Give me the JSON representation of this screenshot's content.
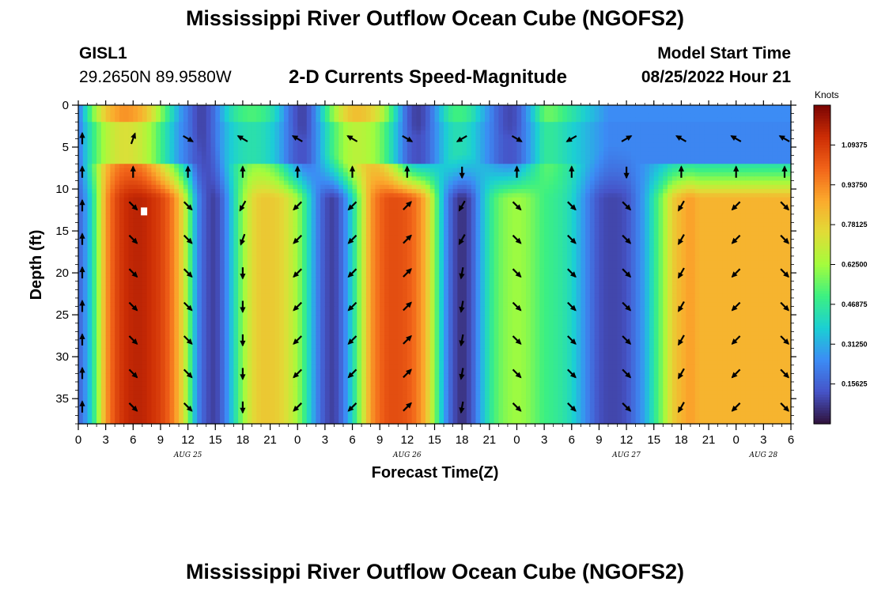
{
  "header": {
    "title": "Mississippi River Outflow Ocean Cube (NGOFS2)",
    "station_id": "GISL1",
    "coordinates": "29.2650N  89.9580W",
    "subtitle": "2-D Currents Speed-Magnitude",
    "model_start_label": "Model Start Time",
    "model_start_value": "08/25/2022 Hour 21"
  },
  "footer": {
    "title": "Mississippi River Outflow Ocean Cube (NGOFS2)"
  },
  "chart_data": {
    "type": "heatmap",
    "xlabel": "Forecast Time(Z)",
    "ylabel": "Depth (ft)",
    "x_unit": "hours since Aug 25 00Z",
    "xlim": [
      0,
      78
    ],
    "ylim": [
      0,
      38
    ],
    "y_inverted": true,
    "x_tick_values": [
      0,
      3,
      6,
      9,
      12,
      15,
      18,
      21,
      24,
      27,
      30,
      33,
      36,
      39,
      42,
      45,
      48,
      51,
      54,
      57,
      60,
      63,
      66,
      69,
      72,
      75,
      78
    ],
    "x_tick_labels": [
      "0",
      "3",
      "6",
      "9",
      "12",
      "15",
      "18",
      "21",
      "0",
      "3",
      "6",
      "9",
      "12",
      "15",
      "18",
      "21",
      "0",
      "3",
      "6",
      "9",
      "12",
      "15",
      "18",
      "21",
      "0",
      "3",
      "6"
    ],
    "y_ticks": [
      0,
      5,
      10,
      15,
      20,
      25,
      30,
      35
    ],
    "day_labels": [
      {
        "text": "AUG 25",
        "hour": 12
      },
      {
        "text": "AUG 26",
        "hour": 36
      },
      {
        "text": "AUG 27",
        "hour": 60
      },
      {
        "text": "AUG 28",
        "hour": 75
      }
    ],
    "colorbar": {
      "units": "Knots",
      "range": [
        0,
        1.25
      ],
      "tick_values": [
        1.09375,
        0.9375,
        0.78125,
        0.625,
        0.46875,
        0.3125,
        0.15625
      ],
      "tick_labels": [
        "1.09375",
        "0.93750",
        "0.78125",
        "0.62500",
        "0.46875",
        "0.31250",
        "0.15625"
      ]
    },
    "column_hours": [
      0,
      1,
      2,
      3,
      4,
      5,
      6,
      7,
      8,
      9,
      10,
      11,
      12,
      13,
      14,
      15,
      16,
      17,
      18,
      19,
      20,
      21,
      22,
      23,
      24,
      25,
      26,
      27,
      28,
      29,
      30,
      31,
      32,
      33,
      34,
      35,
      36,
      37,
      38,
      39,
      40,
      41,
      42,
      43,
      44,
      45,
      46,
      47,
      48,
      49,
      50,
      51,
      52,
      53,
      54,
      55,
      56,
      57,
      58,
      59,
      60,
      61,
      62,
      63,
      64,
      65,
      66,
      67,
      68,
      69,
      70,
      71,
      72,
      73,
      74,
      75,
      76,
      77,
      78
    ],
    "lower_layer": {
      "depth_range_ft": [
        11,
        38
      ],
      "speed_knots": [
        0.15,
        0.3,
        0.55,
        0.9,
        1.05,
        1.12,
        1.15,
        1.15,
        1.12,
        1.08,
        1.0,
        0.85,
        0.6,
        0.25,
        0.12,
        0.08,
        0.2,
        0.4,
        0.6,
        0.75,
        0.8,
        0.8,
        0.78,
        0.72,
        0.62,
        0.45,
        0.25,
        0.12,
        0.08,
        0.2,
        0.4,
        0.65,
        0.9,
        1.0,
        1.05,
        1.05,
        1.03,
        0.97,
        0.85,
        0.6,
        0.3,
        0.12,
        0.05,
        0.12,
        0.3,
        0.45,
        0.55,
        0.6,
        0.62,
        0.6,
        0.55,
        0.5,
        0.48,
        0.45,
        0.4,
        0.3,
        0.2,
        0.12,
        0.1,
        0.1,
        0.12,
        0.2,
        0.3,
        0.45,
        0.6,
        0.78,
        0.85,
        0.9,
        0.85,
        0.85,
        0.85,
        0.85,
        0.85,
        0.85,
        0.85,
        0.85,
        0.85,
        0.85,
        0.85
      ]
    },
    "upper_layer": {
      "depth_range_ft": [
        0,
        9
      ],
      "speed_knots": [
        0.2,
        0.45,
        0.65,
        0.8,
        0.88,
        0.92,
        0.9,
        0.85,
        0.75,
        0.6,
        0.45,
        0.3,
        0.2,
        0.1,
        0.1,
        0.2,
        0.35,
        0.45,
        0.5,
        0.52,
        0.5,
        0.45,
        0.35,
        0.2,
        0.1,
        0.1,
        0.25,
        0.45,
        0.62,
        0.75,
        0.82,
        0.82,
        0.78,
        0.7,
        0.55,
        0.35,
        0.15,
        0.08,
        0.12,
        0.25,
        0.4,
        0.5,
        0.5,
        0.45,
        0.35,
        0.25,
        0.15,
        0.1,
        0.12,
        0.25,
        0.4,
        0.55,
        0.55,
        0.5,
        0.45,
        0.4,
        0.35,
        0.3,
        0.25,
        0.25,
        0.25,
        0.25,
        0.25,
        0.25,
        0.25,
        0.25,
        0.25,
        0.25,
        0.25,
        0.25,
        0.25,
        0.25,
        0.25,
        0.25,
        0.25,
        0.25,
        0.25,
        0.25,
        0.25
      ]
    },
    "vector_hours": [
      0,
      6,
      12,
      18,
      24,
      30,
      36,
      42,
      48,
      54,
      60,
      66,
      72,
      78
    ],
    "vector_depths_ft": [
      4,
      8,
      12,
      16,
      20,
      24,
      28,
      32,
      36
    ],
    "vector_direction_deg": [
      [
        0,
        20,
        120,
        300,
        300,
        300,
        120,
        240,
        120,
        240,
        60,
        300,
        300,
        300
      ],
      [
        0,
        0,
        0,
        0,
        0,
        0,
        0,
        180,
        0,
        0,
        180,
        0,
        0,
        0
      ],
      [
        0,
        135,
        135,
        210,
        225,
        225,
        45,
        210,
        135,
        135,
        135,
        210,
        225,
        135
      ],
      [
        0,
        135,
        135,
        200,
        225,
        225,
        45,
        210,
        135,
        135,
        135,
        210,
        225,
        135
      ],
      [
        0,
        135,
        135,
        180,
        225,
        225,
        45,
        190,
        135,
        135,
        135,
        210,
        225,
        135
      ],
      [
        0,
        135,
        135,
        180,
        225,
        225,
        45,
        190,
        135,
        135,
        135,
        210,
        225,
        135
      ],
      [
        0,
        135,
        135,
        180,
        225,
        225,
        45,
        190,
        135,
        135,
        135,
        210,
        225,
        135
      ],
      [
        0,
        135,
        135,
        180,
        225,
        225,
        45,
        190,
        135,
        135,
        135,
        210,
        225,
        135
      ],
      [
        0,
        135,
        135,
        180,
        225,
        225,
        45,
        190,
        135,
        135,
        135,
        210,
        225,
        135
      ]
    ]
  }
}
